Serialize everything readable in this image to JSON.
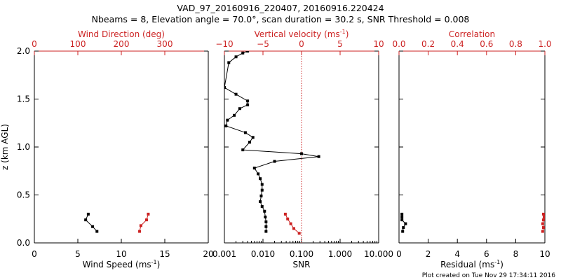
{
  "title_line1": "VAD_97_20160916_220407, 20160916.220424",
  "title_line2": "Nbeams = 8, Elevation angle = 70.0°, scan duration = 30.2 s, SNR Threshold = 0.008",
  "footer": "Plot created on Tue Nov 29 17:34:11 2016",
  "colors": {
    "primary": "#000000",
    "secondary": "#cc2222",
    "zero_line": "#cc2222"
  },
  "chart_data": [
    {
      "type": "line",
      "panel": "wind",
      "ylabel": "z (km AGL)",
      "ylim": [
        0,
        2.0
      ],
      "yticks": [
        0.0,
        0.5,
        1.0,
        1.5,
        2.0
      ],
      "ytick_labels": [
        "0.0",
        "0.5",
        "1.0",
        "1.5",
        "2.0"
      ],
      "bottom_axis": {
        "label_main": "Wind Speed (ms",
        "label_sup": "-1",
        "label_end": ")",
        "xlim": [
          0,
          20
        ],
        "ticks": [
          0,
          5,
          10,
          15,
          20
        ],
        "tick_labels": [
          "0",
          "5",
          "10",
          "15",
          "20"
        ]
      },
      "top_axis": {
        "label": "Wind Direction (deg)",
        "xlim": [
          0,
          400
        ],
        "ticks": [
          0,
          100,
          200,
          300
        ],
        "tick_labels": [
          "0",
          "100",
          "200",
          "300"
        ]
      },
      "series": [
        {
          "name": "Wind Speed",
          "axis": "bottom",
          "color": "#000000",
          "x": [
            7.2,
            6.7,
            5.9,
            6.2
          ],
          "y": [
            0.12,
            0.17,
            0.24,
            0.3
          ]
        },
        {
          "name": "Wind Direction",
          "axis": "top",
          "color": "#cc2222",
          "x": [
            242,
            245,
            258,
            262
          ],
          "y": [
            0.12,
            0.18,
            0.24,
            0.3
          ]
        }
      ]
    },
    {
      "type": "line",
      "panel": "snr",
      "ylim": [
        0,
        2.0
      ],
      "yticks": [
        0.0,
        0.5,
        1.0,
        1.5,
        2.0
      ],
      "bottom_axis": {
        "label": "SNR",
        "scale": "log",
        "xlim": [
          0.001,
          10
        ],
        "ticks": [
          0.001,
          0.01,
          0.1,
          1,
          10
        ],
        "tick_labels": [
          "0.001",
          "0.010",
          "0.100",
          "1.000",
          "10.000"
        ]
      },
      "top_axis": {
        "label_main": "Vertical velocity (ms",
        "label_sup": "-1",
        "label_end": ")",
        "xlim": [
          -10,
          10
        ],
        "ticks": [
          -10,
          -5,
          0,
          5,
          10
        ],
        "tick_labels": [
          "−10",
          "−5",
          "0",
          "5",
          "10"
        ]
      },
      "series": [
        {
          "name": "SNR",
          "axis": "bottom",
          "color": "#000000",
          "x": [
            0.012,
            0.012,
            0.012,
            0.0115,
            0.011,
            0.0095,
            0.0085,
            0.009,
            0.0095,
            0.0095,
            0.0085,
            0.0075,
            0.006,
            0.02,
            0.28,
            0.1,
            0.003,
            0.0045,
            0.0055,
            0.0035,
            0.0011,
            0.0012,
            0.0018,
            0.0025,
            0.004,
            0.004,
            0.002,
            0.001,
            0.0013,
            0.002,
            0.003,
            0.004
          ],
          "y": [
            0.12,
            0.17,
            0.22,
            0.27,
            0.33,
            0.38,
            0.43,
            0.49,
            0.55,
            0.61,
            0.67,
            0.72,
            0.78,
            0.85,
            0.9,
            0.93,
            0.97,
            1.05,
            1.1,
            1.15,
            1.22,
            1.28,
            1.33,
            1.4,
            1.44,
            1.48,
            1.55,
            1.62,
            1.88,
            1.94,
            1.98,
            2.0
          ]
        },
        {
          "name": "Vertical velocity",
          "axis": "top",
          "color": "#cc2222",
          "x": [
            -0.3,
            -1.0,
            -1.4,
            -1.8,
            -2.1
          ],
          "y": [
            0.1,
            0.15,
            0.2,
            0.25,
            0.3
          ]
        }
      ],
      "reference_line": {
        "axis": "top",
        "value": 0
      }
    },
    {
      "type": "line",
      "panel": "residual",
      "ylim": [
        0,
        2.0
      ],
      "yticks": [
        0.0,
        0.5,
        1.0,
        1.5,
        2.0
      ],
      "bottom_axis": {
        "label_main": "Residual (ms",
        "label_sup": "-1",
        "label_end": ")",
        "xlim": [
          0,
          10
        ],
        "ticks": [
          0,
          2,
          4,
          6,
          8,
          10
        ],
        "tick_labels": [
          "0",
          "2",
          "4",
          "6",
          "8",
          "10"
        ]
      },
      "top_axis": {
        "label": "Correlation",
        "xlim": [
          0,
          1
        ],
        "ticks": [
          0,
          0.2,
          0.4,
          0.6,
          0.8,
          1.0
        ],
        "tick_labels": [
          "0.0",
          "0.2",
          "0.4",
          "0.6",
          "0.8",
          "1.0"
        ]
      },
      "series": [
        {
          "name": "Residual",
          "axis": "bottom",
          "color": "#000000",
          "x": [
            0.25,
            0.3,
            0.45,
            0.2,
            0.2,
            0.2
          ],
          "y": [
            0.12,
            0.16,
            0.2,
            0.24,
            0.27,
            0.3
          ]
        },
        {
          "name": "Correlation",
          "axis": "top",
          "color": "#cc2222",
          "x": [
            0.985,
            0.99,
            0.985,
            0.99,
            0.995,
            0.99
          ],
          "y": [
            0.12,
            0.16,
            0.2,
            0.24,
            0.27,
            0.3
          ]
        }
      ]
    }
  ]
}
